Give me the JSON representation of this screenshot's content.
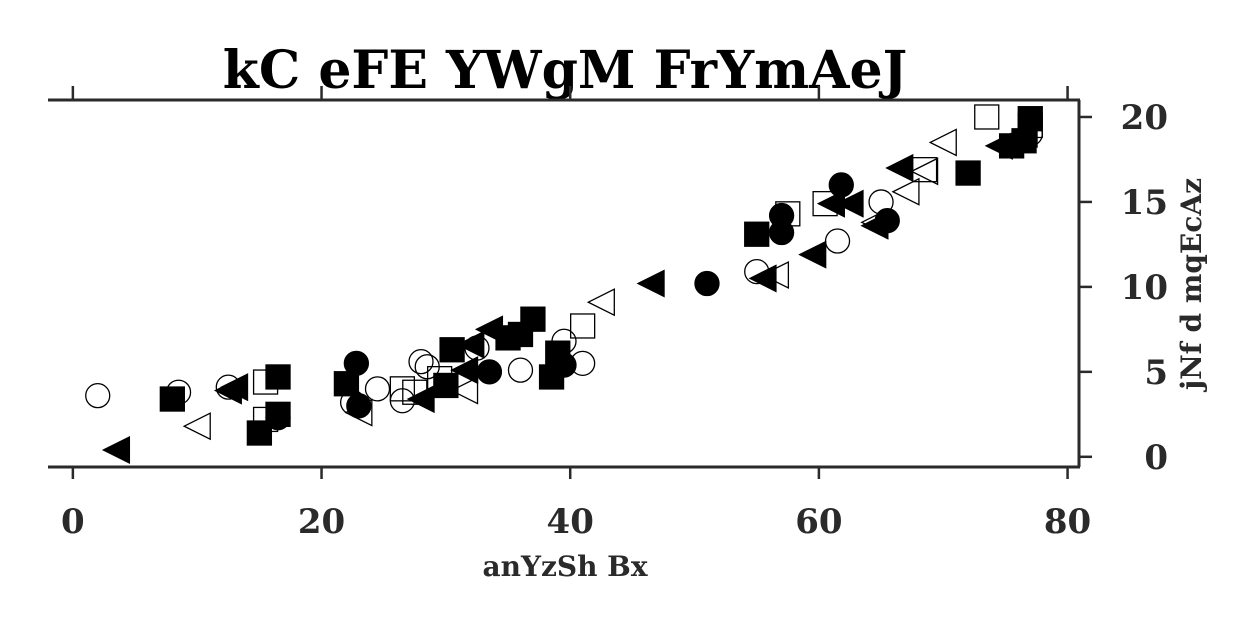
{
  "chart_data": {
    "type": "scatter",
    "title": "kC eFE YWgM FrYmAeJ",
    "xlabel": "anYzSh Bx",
    "ylabel": "jNf d mqEcAz",
    "xlim": [
      -2,
      81
    ],
    "ylim": [
      -0.6,
      21
    ],
    "x_ticks": [
      "0",
      "20",
      "40",
      "60",
      "80"
    ],
    "y_ticks": [
      "0",
      "5",
      "10",
      "15",
      "20"
    ],
    "y_axis_side": "right",
    "x_axis_side": "bottom",
    "grid": false,
    "legend": "none",
    "series": [
      {
        "marker": "circle-open",
        "x": [
          2,
          8.5,
          12.5,
          22.5,
          24.5,
          26.5,
          28,
          28.5,
          32.5,
          36,
          39.5,
          41,
          55,
          61.5,
          65,
          77
        ],
        "y": [
          3.6,
          3.8,
          4.1,
          3.2,
          4.0,
          3.3,
          5.6,
          5.3,
          6.4,
          5.1,
          6.8,
          5.5,
          10.9,
          12.7,
          15.0,
          19.0
        ]
      },
      {
        "marker": "circle-filled",
        "x": [
          16.5,
          22.8,
          23,
          33.5,
          39.5,
          51,
          57,
          57,
          61.8,
          65.5
        ],
        "y": [
          2.3,
          5.5,
          3.0,
          5.0,
          5.4,
          10.2,
          14.2,
          13.2,
          16.0,
          13.9
        ]
      },
      {
        "marker": "square-open",
        "x": [
          15.5,
          15.5,
          26.5,
          27.5,
          29.5,
          41,
          57.5,
          60.5,
          68.5,
          73.5,
          77
        ],
        "y": [
          2.2,
          4.4,
          4.0,
          3.8,
          4.6,
          7.7,
          14.3,
          14.9,
          16.9,
          20.0,
          19.5
        ]
      },
      {
        "marker": "square-filled",
        "x": [
          8,
          15,
          16.5,
          16.5,
          22,
          30,
          30.5,
          35,
          36,
          37,
          38.5,
          39,
          55,
          72,
          75.5,
          76.5,
          77
        ],
        "y": [
          3.4,
          1.4,
          4.7,
          2.5,
          4.3,
          4.2,
          6.3,
          7.0,
          7.2,
          8.1,
          4.7,
          6.1,
          13.1,
          16.7,
          18.3,
          18.6,
          19.9
        ]
      },
      {
        "marker": "triangle-left-open",
        "x": [
          10,
          23,
          31.5,
          42.5,
          56.5,
          64.5,
          67,
          68.5,
          70,
          76.5
        ],
        "y": [
          1.8,
          2.6,
          3.9,
          9.1,
          10.7,
          13.8,
          15.6,
          16.8,
          18.5,
          19.0
        ]
      },
      {
        "marker": "triangle-left-filled",
        "x": [
          3.5,
          12.5,
          13,
          28,
          31.5,
          32,
          33.5,
          46.5,
          55.5,
          59.5,
          61,
          62.5,
          64.5,
          66.5,
          74.5
        ],
        "y": [
          0.4,
          3.9,
          4.1,
          3.4,
          5.1,
          6.6,
          7.5,
          10.2,
          10.5,
          11.9,
          14.9,
          14.9,
          13.6,
          17.0,
          18.3
        ]
      }
    ]
  }
}
